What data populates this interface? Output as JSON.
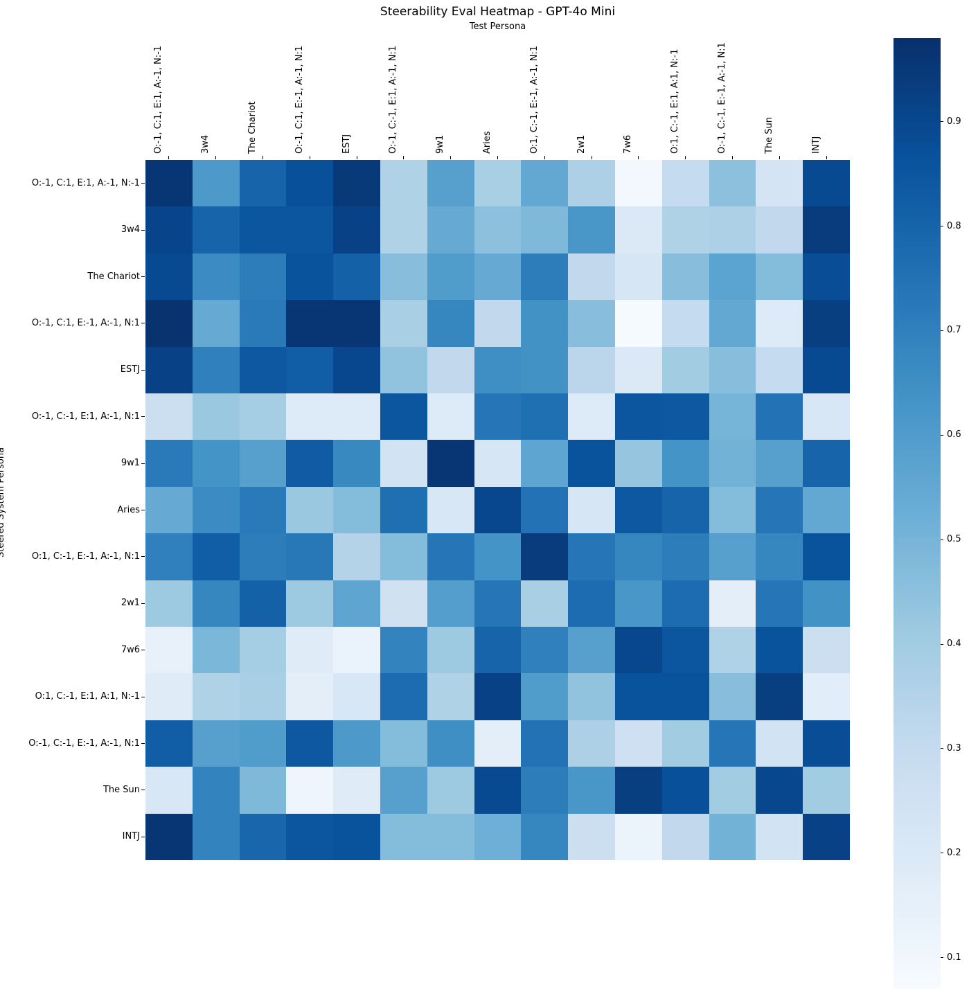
{
  "figure": {
    "title": "Steerability Eval Heatmap - GPT-4o Mini",
    "x_axis_label": "Test Persona",
    "y_axis_label": "Steered System Persona"
  },
  "chart_data": {
    "type": "heatmap",
    "title": "Steerability Eval Heatmap - GPT-4o Mini",
    "xlabel": "Test Persona",
    "ylabel": "Steered System Persona",
    "colormap": "Blues",
    "vmin": 0.07,
    "vmax": 0.98,
    "grid": false,
    "legend_position": "right-colorbar",
    "x_labels": [
      "O:-1, C:1, E:1, A:-1, N:-1",
      "3w4",
      "The Chariot",
      "O:-1, C:1, E:-1, A:-1, N:1",
      "ESTJ",
      "O:-1, C:-1, E:1, A:-1, N:1",
      "9w1",
      "Aries",
      "O:1, C:-1, E:-1, A:-1, N:1",
      "2w1",
      "7w6",
      "O:1, C:-1, E:1, A:1, N:-1",
      "O:-1, C:-1, E:-1, A:-1, N:1",
      "The Sun",
      "INTJ"
    ],
    "y_labels": [
      "O:-1, C:1, E:1, A:-1, N:-1",
      "3w4",
      "The Chariot",
      "O:-1, C:1, E:-1, A:-1, N:1",
      "ESTJ",
      "O:-1, C:-1, E:1, A:-1, N:1",
      "9w1",
      "Aries",
      "O:1, C:-1, E:-1, A:-1, N:1",
      "2w1",
      "7w6",
      "O:1, C:-1, E:1, A:1, N:-1",
      "O:-1, C:-1, E:-1, A:-1, N:1",
      "The Sun",
      "INTJ"
    ],
    "values": [
      [
        0.96,
        0.61,
        0.8,
        0.87,
        0.95,
        0.36,
        0.58,
        0.38,
        0.55,
        0.37,
        0.09,
        0.3,
        0.45,
        0.23,
        0.89
      ],
      [
        0.91,
        0.8,
        0.85,
        0.85,
        0.92,
        0.36,
        0.54,
        0.45,
        0.48,
        0.62,
        0.2,
        0.36,
        0.37,
        0.31,
        0.94
      ],
      [
        0.89,
        0.66,
        0.71,
        0.86,
        0.81,
        0.46,
        0.6,
        0.54,
        0.71,
        0.31,
        0.22,
        0.46,
        0.57,
        0.47,
        0.88
      ],
      [
        0.97,
        0.54,
        0.72,
        0.96,
        0.96,
        0.38,
        0.68,
        0.31,
        0.64,
        0.46,
        0.08,
        0.3,
        0.55,
        0.19,
        0.93
      ],
      [
        0.92,
        0.7,
        0.84,
        0.82,
        0.9,
        0.44,
        0.31,
        0.65,
        0.64,
        0.33,
        0.2,
        0.4,
        0.46,
        0.3,
        0.89
      ],
      [
        0.27,
        0.42,
        0.39,
        0.19,
        0.19,
        0.85,
        0.19,
        0.74,
        0.76,
        0.19,
        0.85,
        0.84,
        0.5,
        0.75,
        0.21
      ],
      [
        0.72,
        0.63,
        0.58,
        0.83,
        0.67,
        0.24,
        0.96,
        0.22,
        0.56,
        0.86,
        0.43,
        0.63,
        0.51,
        0.58,
        0.8
      ],
      [
        0.54,
        0.66,
        0.72,
        0.42,
        0.47,
        0.76,
        0.21,
        0.9,
        0.75,
        0.22,
        0.84,
        0.8,
        0.47,
        0.74,
        0.55
      ],
      [
        0.7,
        0.82,
        0.71,
        0.73,
        0.35,
        0.47,
        0.74,
        0.63,
        0.94,
        0.74,
        0.68,
        0.71,
        0.58,
        0.68,
        0.86
      ],
      [
        0.41,
        0.68,
        0.81,
        0.41,
        0.56,
        0.25,
        0.59,
        0.74,
        0.38,
        0.77,
        0.62,
        0.77,
        0.16,
        0.74,
        0.64
      ],
      [
        0.14,
        0.49,
        0.39,
        0.18,
        0.13,
        0.69,
        0.41,
        0.8,
        0.7,
        0.58,
        0.9,
        0.85,
        0.36,
        0.86,
        0.27
      ],
      [
        0.18,
        0.36,
        0.38,
        0.16,
        0.21,
        0.77,
        0.36,
        0.92,
        0.6,
        0.44,
        0.86,
        0.86,
        0.46,
        0.93,
        0.17
      ],
      [
        0.82,
        0.58,
        0.6,
        0.84,
        0.61,
        0.47,
        0.65,
        0.16,
        0.75,
        0.37,
        0.26,
        0.4,
        0.74,
        0.24,
        0.88
      ],
      [
        0.21,
        0.69,
        0.48,
        0.11,
        0.18,
        0.58,
        0.41,
        0.89,
        0.71,
        0.62,
        0.93,
        0.87,
        0.4,
        0.9,
        0.4
      ],
      [
        0.96,
        0.69,
        0.79,
        0.85,
        0.86,
        0.47,
        0.47,
        0.52,
        0.68,
        0.27,
        0.12,
        0.31,
        0.51,
        0.24,
        0.92
      ]
    ],
    "colorbar_ticks": [
      0.9,
      0.8,
      0.7,
      0.6,
      0.5,
      0.4,
      0.3,
      0.2,
      0.1
    ]
  }
}
